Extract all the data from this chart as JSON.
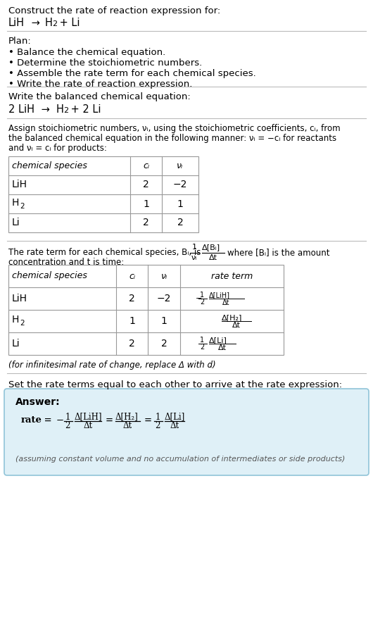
{
  "bg_color": "#ffffff",
  "separator_color": "#bbbbbb",
  "plan_items": [
    "• Balance the chemical equation.",
    "• Determine the stoichiometric numbers.",
    "• Assemble the rate term for each chemical species.",
    "• Write the rate of reaction expression."
  ],
  "table1_headers": [
    "chemical species",
    "cᵢ",
    "νᵢ"
  ],
  "table1_rows": [
    [
      "LiH",
      "2",
      "−2"
    ],
    [
      "H₂",
      "1",
      "1"
    ],
    [
      "Li",
      "2",
      "2"
    ]
  ],
  "table2_headers": [
    "chemical species",
    "cᵢ",
    "νᵢ",
    "rate term"
  ],
  "table2_rows": [
    [
      "LiH",
      "2",
      "−2"
    ],
    [
      "H₂",
      "1",
      "1"
    ],
    [
      "Li",
      "2",
      "2"
    ]
  ],
  "infinitesimal_note": "(for infinitesimal rate of change, replace Δ with d)",
  "set_equal_text": "Set the rate terms equal to each other to arrive at the rate expression:",
  "answer_bg": "#dff0f7",
  "answer_border": "#90c4d8",
  "answer_label": "Answer:",
  "answer_note": "(assuming constant volume and no accumulation of intermediates or side products)"
}
